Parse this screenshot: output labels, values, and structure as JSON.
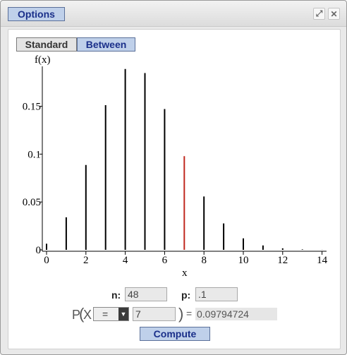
{
  "titlebar": {
    "options_label": "Options",
    "icons": [
      "resize-icon",
      "close-icon"
    ]
  },
  "modes": {
    "standard": "Standard",
    "between": "Between",
    "selected": "Between"
  },
  "params": {
    "n_label": "n:",
    "n_value": "48",
    "p_label": "p:",
    "p_value": ".1"
  },
  "probability": {
    "prefix": "P",
    "open_paren": "(",
    "variable": "X",
    "operator": "=",
    "value": "7",
    "close_paren": ")",
    "equals": "=",
    "result": "0.09794724"
  },
  "compute_label": "Compute",
  "colors": {
    "bar": "#000000",
    "highlight": "#c0281e",
    "accent": "#bfd0ea"
  },
  "chart_data": {
    "type": "bar",
    "ylabel": "f(x)",
    "xlabel": "x",
    "x_ticks": [
      "0",
      "2",
      "4",
      "6",
      "8",
      "10",
      "12",
      "14"
    ],
    "y_ticks": [
      "0",
      "0.05",
      "0.1",
      "0.15"
    ],
    "xlim": [
      0,
      14
    ],
    "ylim": [
      0,
      0.188
    ],
    "highlight_x": 7,
    "x": [
      0,
      1,
      2,
      3,
      4,
      5,
      6,
      7,
      8,
      9,
      10,
      11,
      12,
      13,
      14
    ],
    "values": [
      0.0064,
      0.034,
      0.0887,
      0.1511,
      0.1889,
      0.1847,
      0.1471,
      0.0979,
      0.0558,
      0.0276,
      0.012,
      0.0046,
      0.0016,
      0.0005,
      0.0001
    ]
  }
}
